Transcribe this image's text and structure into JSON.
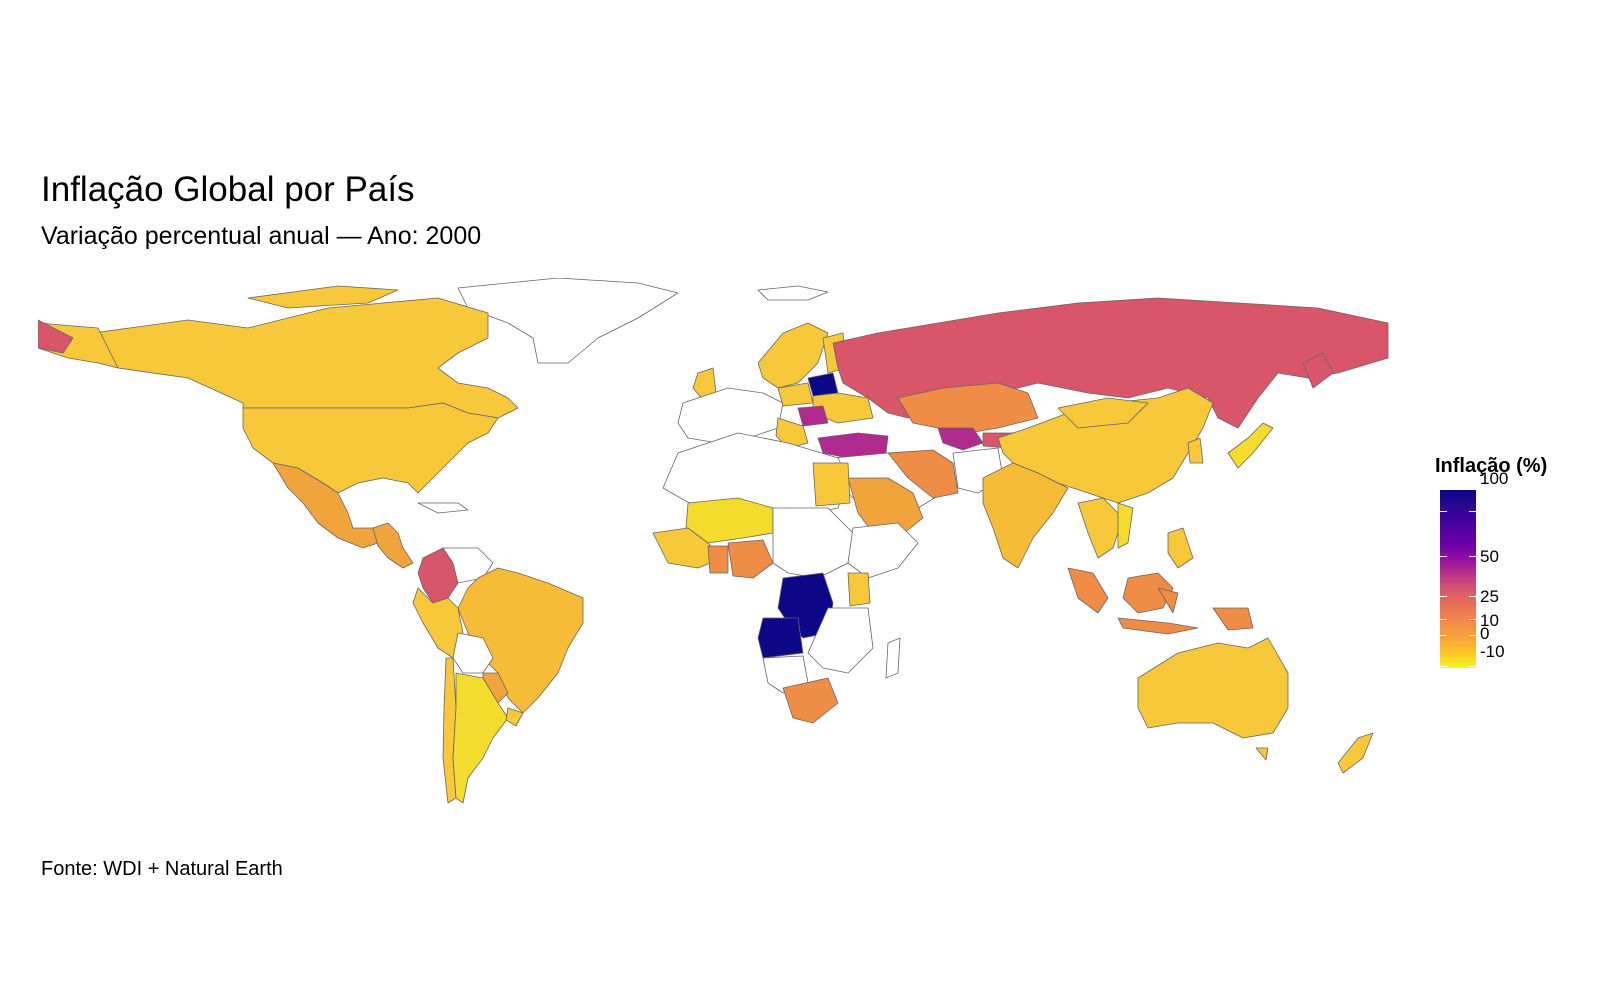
{
  "title": "Inflação Global por País",
  "subtitle": "Variação percentual anual — Ano: 2000",
  "caption": "Fonte: WDI + Natural Earth",
  "chart_data": {
    "type": "choropleth",
    "variable": "Inflação (%)",
    "year": 2000,
    "legend": {
      "title": "Inflação (%)",
      "ticks": [
        "100",
        "50",
        "25",
        "10",
        "0",
        "-10"
      ],
      "range": [
        -10,
        100
      ],
      "palette": "plasma (reversed)",
      "placement": "right"
    },
    "colors": {
      "very_high": "#0d0887",
      "high": "#b12a90",
      "elevated": "#d9566a",
      "medium": "#ef8c45",
      "moderate": "#f7b733",
      "low": "#f6c83a",
      "very_low": "#f3dc2e",
      "no_data": "#ffffff",
      "border": "#666666"
    },
    "countries": [
      {
        "name": "Canada",
        "inflation": 2.7
      },
      {
        "name": "United States",
        "inflation": 3.4
      },
      {
        "name": "Mexico",
        "inflation": 9.5
      },
      {
        "name": "Colombia",
        "inflation": 31.0
      },
      {
        "name": "Brazil",
        "inflation": 7.0
      },
      {
        "name": "Argentina",
        "inflation": -0.9
      },
      {
        "name": "Paraguay",
        "inflation": 8.6
      },
      {
        "name": "Chile",
        "inflation": 3.8
      },
      {
        "name": "Russia",
        "inflation": 37.7
      },
      {
        "name": "Kazakhstan",
        "inflation": 17.4
      },
      {
        "name": "Uzbekistan",
        "inflation": 44.0
      },
      {
        "name": "China",
        "inflation": 2.1
      },
      {
        "name": "India",
        "inflation": 3.6
      },
      {
        "name": "Indonesia",
        "inflation": 20.4
      },
      {
        "name": "Australia",
        "inflation": 4.5
      },
      {
        "name": "New Zealand",
        "inflation": 2.6
      },
      {
        "name": "Japan",
        "inflation": -1.2
      },
      {
        "name": "Belarus",
        "inflation": 168.6
      },
      {
        "name": "Romania",
        "inflation": 45.7
      },
      {
        "name": "Turkey",
        "inflation": 49.2
      },
      {
        "name": "Iran",
        "inflation": 26.4
      },
      {
        "name": "Saudi Arabia",
        "inflation": 12.0
      },
      {
        "name": "Egypt",
        "inflation": 5.4
      },
      {
        "name": "Nigeria",
        "inflation": 12.0
      },
      {
        "name": "Ghana",
        "inflation": 20.5
      },
      {
        "name": "DR Congo",
        "inflation": 514.0
      },
      {
        "name": "Angola",
        "inflation": 418.0
      },
      {
        "name": "South Africa",
        "inflation": 8.8
      },
      {
        "name": "Kenya",
        "inflation": 6.0
      },
      {
        "name": "Norway",
        "inflation": 3.1
      },
      {
        "name": "Sweden",
        "inflation": 1.3
      },
      {
        "name": "United Kingdom",
        "inflation": 0.8
      },
      {
        "name": "Poland",
        "inflation": 10.1
      },
      {
        "name": "Mali",
        "inflation": 0.7
      },
      {
        "name": "Papua New Guinea",
        "inflation": 15.6
      },
      {
        "name": "Malaysia",
        "inflation": 1.5
      },
      {
        "name": "Philippines",
        "inflation": 4.0
      },
      {
        "name": "Thailand",
        "inflation": 1.6
      },
      {
        "name": "Vietnam",
        "inflation": -1.6
      }
    ]
  }
}
